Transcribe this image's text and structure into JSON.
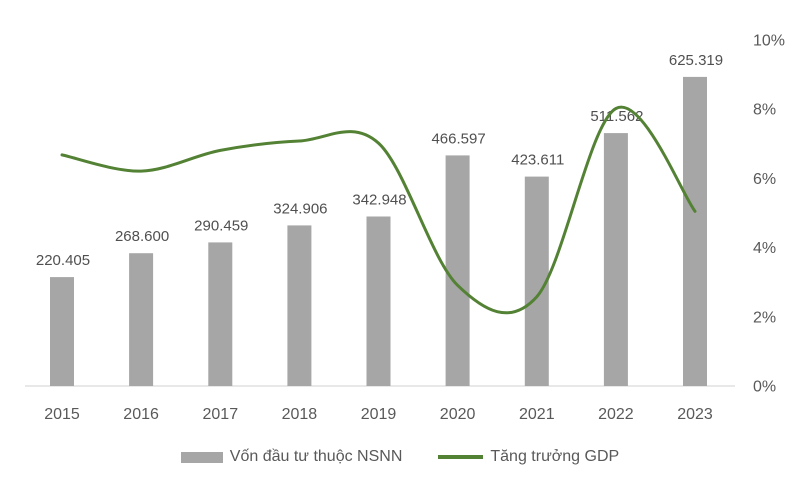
{
  "chart_data": {
    "type": "combo",
    "title": "",
    "categories": [
      "2015",
      "2016",
      "2017",
      "2018",
      "2019",
      "2020",
      "2021",
      "2022",
      "2023"
    ],
    "series": [
      {
        "name": "Vốn đầu tư thuộc NSNN",
        "chart_type": "bar",
        "axis": "left",
        "values": [
          220.405,
          268.6,
          290.459,
          324.906,
          342.948,
          466.597,
          423.611,
          511.562,
          625.319
        ],
        "data_labels": [
          "220.405",
          "268.600",
          "290.459",
          "324.906",
          "342.948",
          "466.597",
          "423.611",
          "511.562",
          "625.319"
        ],
        "color": "#a6a6a6"
      },
      {
        "name": "Tăng trưởng GDP",
        "chart_type": "line",
        "axis": "right",
        "values": [
          6.68,
          6.21,
          6.81,
          7.08,
          7.02,
          2.91,
          2.58,
          8.02,
          5.05
        ],
        "unit": "%",
        "color": "#548235",
        "smooth": true
      }
    ],
    "left_axis": {
      "min": 0,
      "max": 700,
      "visible": false
    },
    "right_axis": {
      "min": 0,
      "max": 10,
      "tick_labels": [
        "0%",
        "2%",
        "4%",
        "6%",
        "8%",
        "10%"
      ],
      "position": "right"
    },
    "grid": false,
    "legend_position": "bottom",
    "background_color": "#ffffff",
    "text_color": "#595959",
    "axis_line_color": "#d9d9d9"
  }
}
